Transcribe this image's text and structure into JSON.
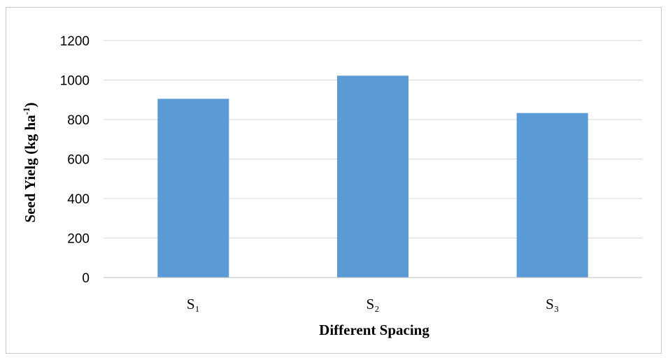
{
  "chart_data": {
    "type": "bar",
    "categories": [
      "S₁",
      "S₂",
      "S₃"
    ],
    "values": [
      905,
      1022,
      833
    ],
    "xlabel": "Different Spacing",
    "ylabel_main": "Seed Yielg (kg ha",
    "ylabel_sup": "-1",
    "ylabel_close": ")",
    "ylim": [
      0,
      1200
    ],
    "yticks": [
      "0",
      "200",
      "400",
      "600",
      "800",
      "1000",
      "1200"
    ],
    "grid": true,
    "bar_color": "#5b9bd5",
    "grid_color": "#d9d9d9"
  }
}
